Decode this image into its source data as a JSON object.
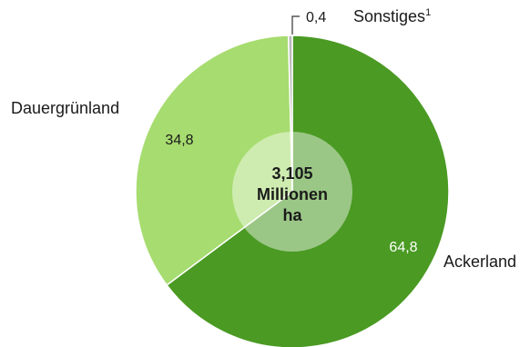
{
  "chart_data": {
    "type": "pie",
    "donut": true,
    "start_angle_deg": 0,
    "direction": "clockwise",
    "center_label": [
      "3,105",
      "Millionen",
      "ha"
    ],
    "slices": [
      {
        "name": "Ackerland",
        "value": 64.8,
        "value_label": "64,8",
        "color": "#4a9a23",
        "value_color": "#ffffff"
      },
      {
        "name": "Dauergrünland",
        "value": 34.8,
        "value_label": "34,8",
        "color": "#a7dc70",
        "value_color": "#1a1a1a"
      },
      {
        "name": "Sonstiges",
        "superscript": "1",
        "value": 0.4,
        "value_label": "0,4",
        "color": "#b9b9b9",
        "value_color": "#1a1a1a"
      }
    ],
    "hole_color": "rgba(255,255,255,0.45)"
  }
}
